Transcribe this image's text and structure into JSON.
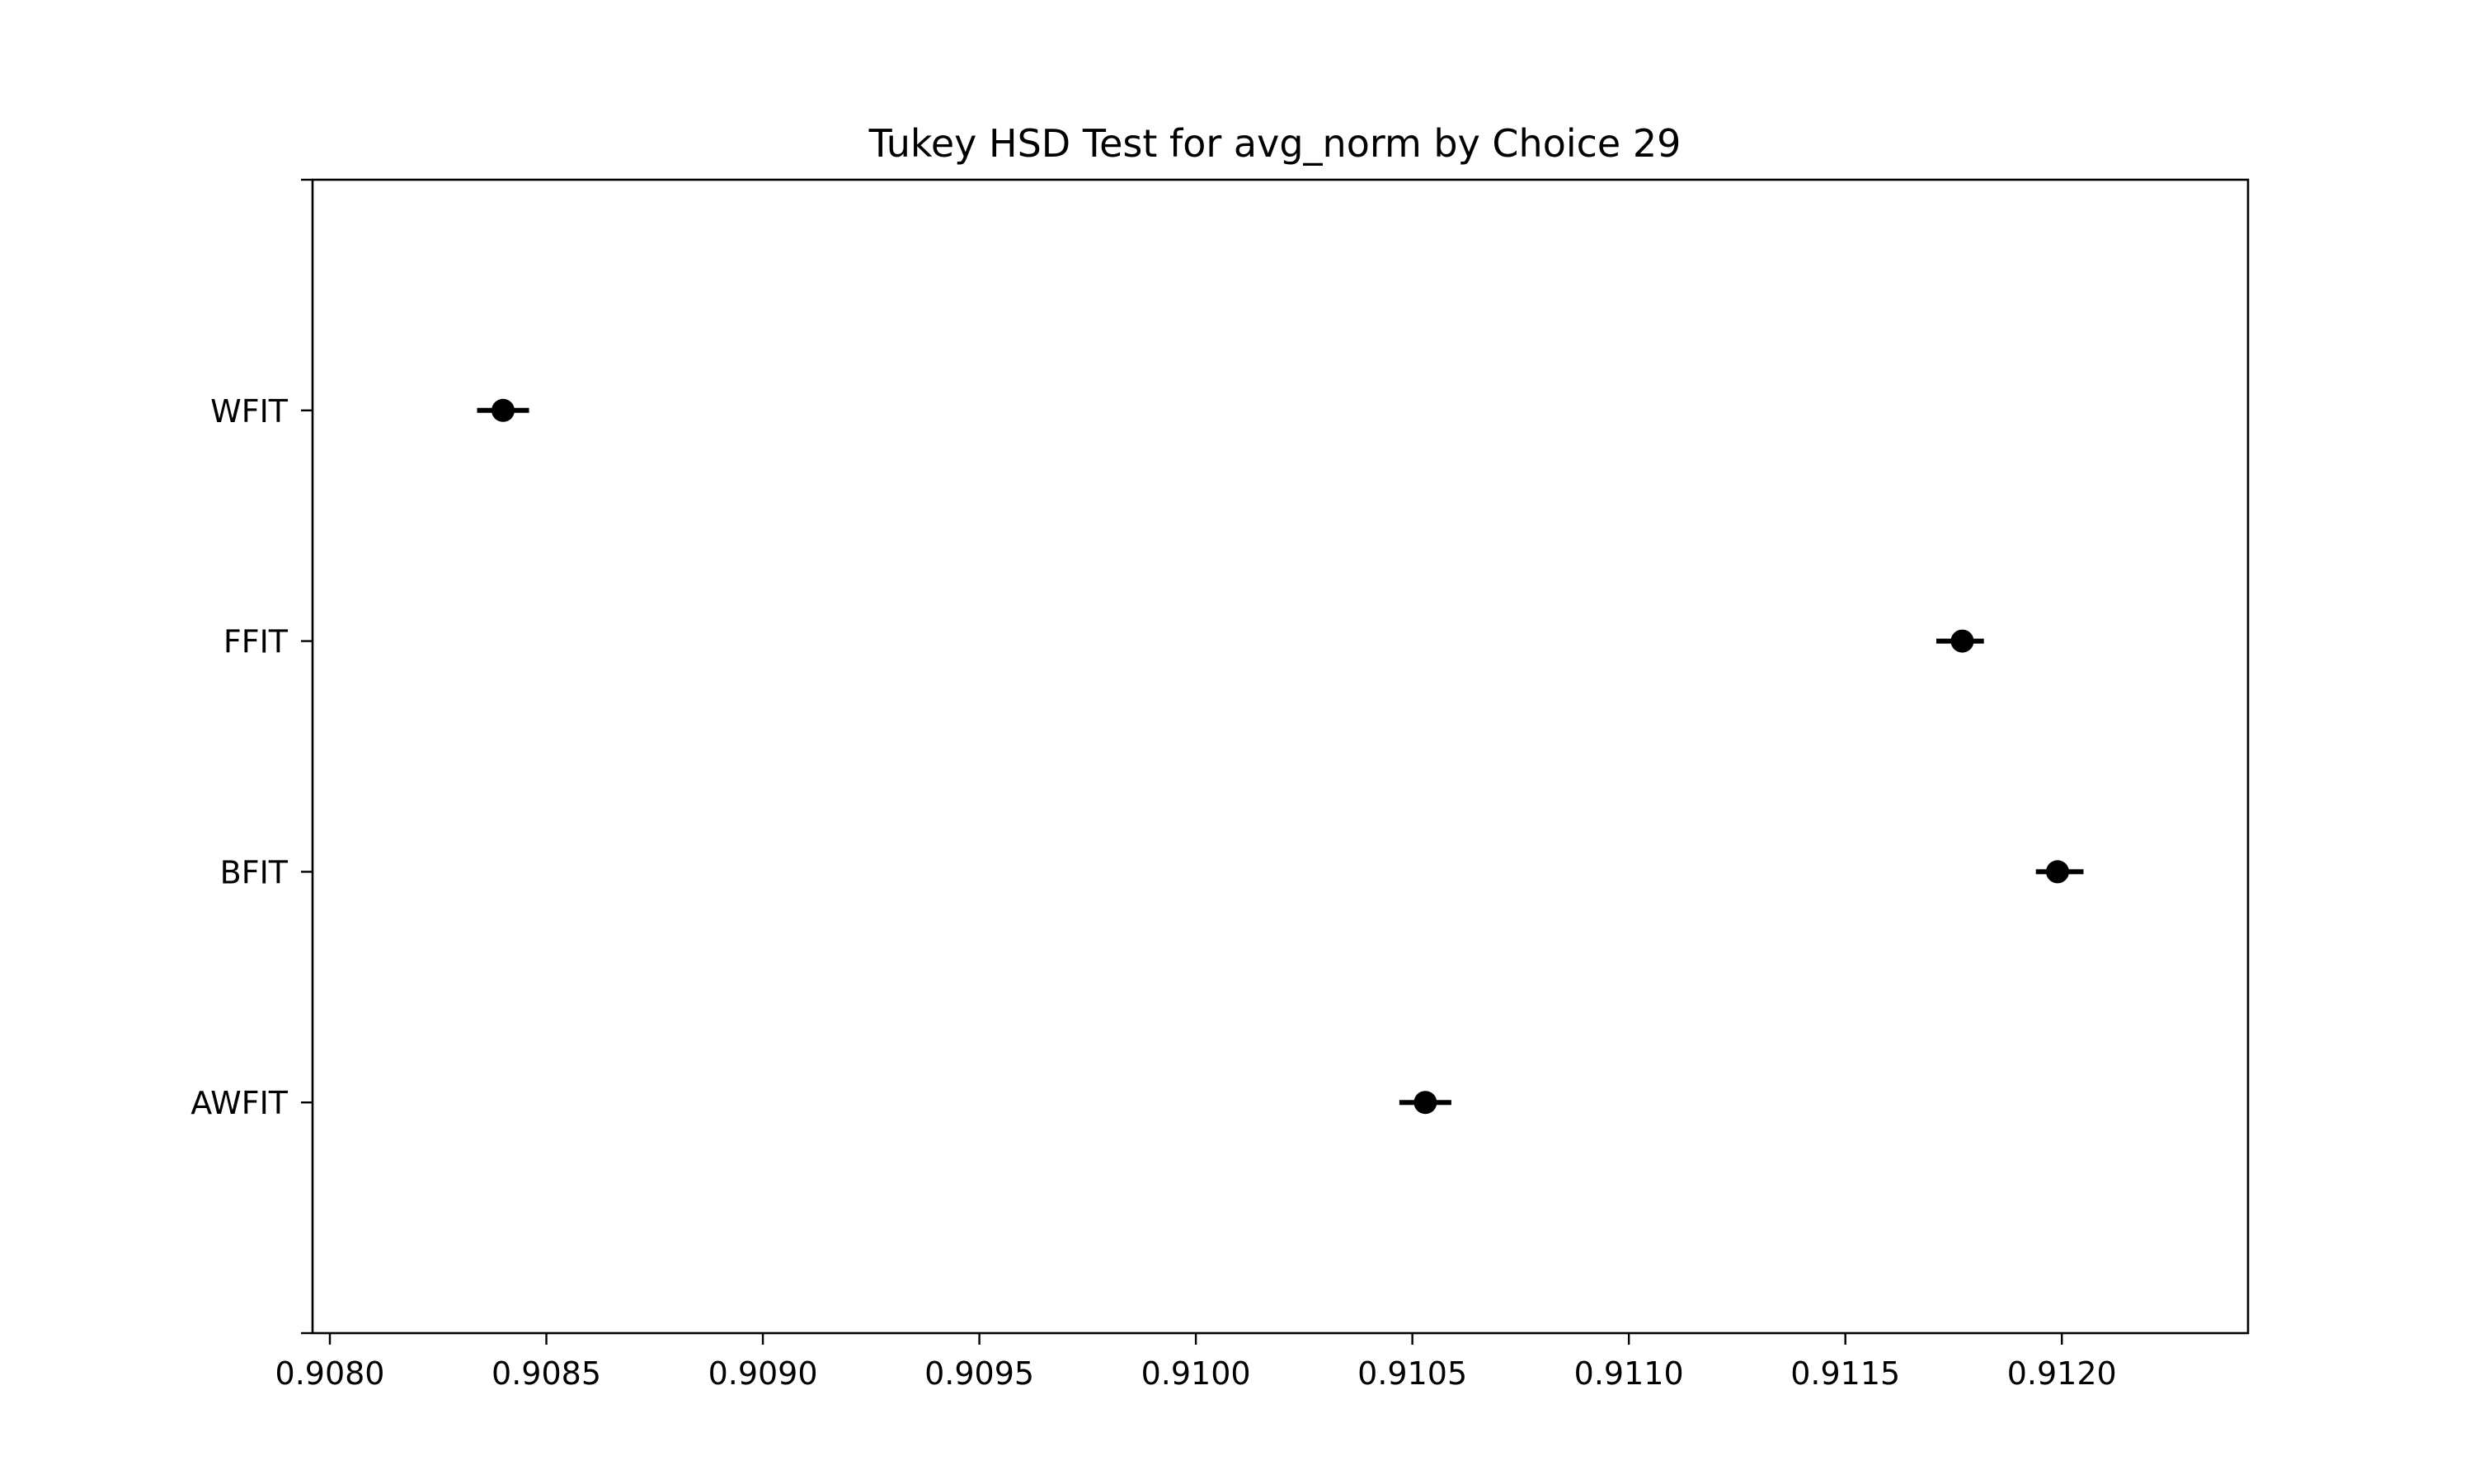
{
  "chart_data": {
    "type": "scatter",
    "title": "Tukey HSD Test for avg_norm by Choice 29",
    "xlabel": "",
    "ylabel": "",
    "xlim": [
      0.90796,
      0.91243
    ],
    "x_ticks": [
      "0.9080",
      "0.9085",
      "0.9090",
      "0.9095",
      "0.9100",
      "0.9105",
      "0.9110",
      "0.9115",
      "0.9120"
    ],
    "x_tick_values": [
      0.908,
      0.9085,
      0.909,
      0.9095,
      0.91,
      0.9105,
      0.911,
      0.9115,
      0.912
    ],
    "categories": [
      "WFIT",
      "FFIT",
      "BFIT",
      "AWFIT"
    ],
    "series": [
      {
        "points": [
          {
            "label": "WFIT",
            "mean": 0.9084,
            "lower": 0.90834,
            "upper": 0.90846
          },
          {
            "label": "FFIT",
            "mean": 0.91177,
            "lower": 0.91171,
            "upper": 0.91182
          },
          {
            "label": "BFIT",
            "mean": 0.91199,
            "lower": 0.91194,
            "upper": 0.91205
          },
          {
            "label": "AWFIT",
            "mean": 0.91053,
            "lower": 0.91047,
            "upper": 0.91059
          }
        ]
      }
    ],
    "grid": false,
    "colors": {
      "marker": "#000000",
      "axes": "#000000"
    }
  }
}
